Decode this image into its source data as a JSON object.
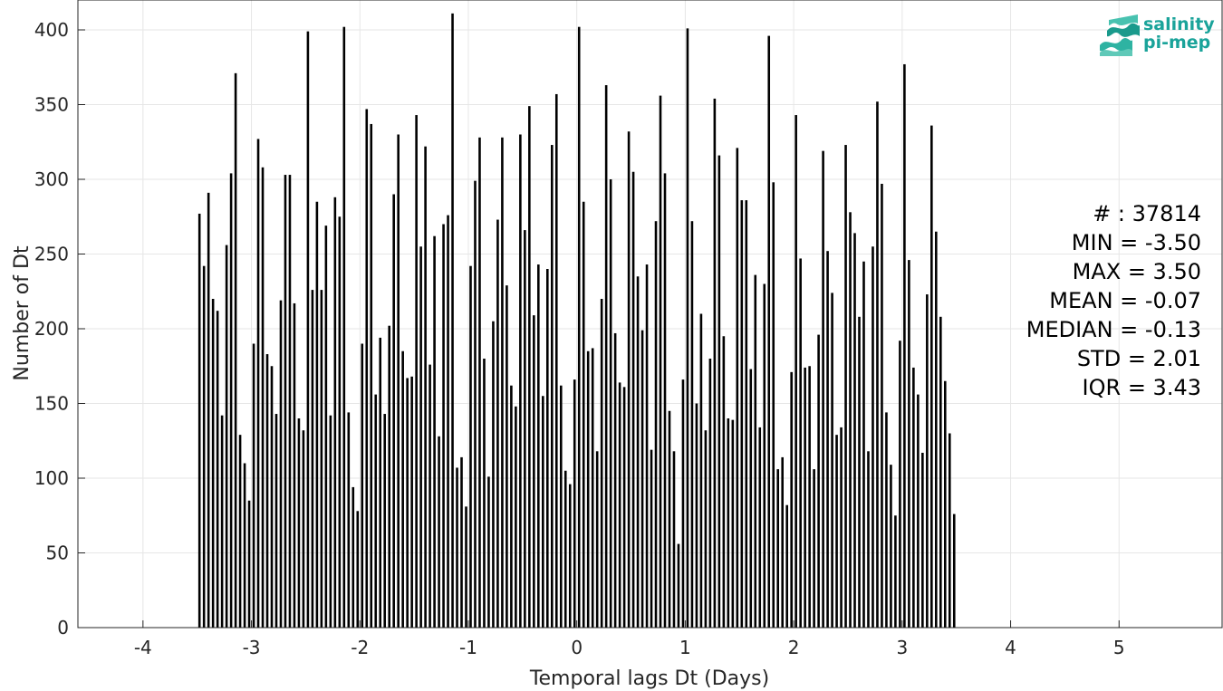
{
  "chart_data": {
    "type": "bar",
    "xlabel": "Temporal lags Dt (Days)",
    "ylabel": "Number of Dt",
    "xlim": [
      -4.6,
      5.95
    ],
    "ylim": [
      0,
      420
    ],
    "xticks": [
      -4,
      -3,
      -2,
      -1,
      0,
      1,
      2,
      3,
      4,
      5
    ],
    "xtick_labels": [
      "-4",
      "-3",
      "-2",
      "-1",
      "0",
      "1",
      "2",
      "3",
      "4",
      "5"
    ],
    "yticks": [
      0,
      50,
      100,
      150,
      200,
      250,
      300,
      350,
      400
    ],
    "ytick_labels": [
      "0",
      "50",
      "100",
      "150",
      "200",
      "250",
      "300",
      "350",
      "400"
    ],
    "grid": true,
    "bar_color": "#000000",
    "bin_width": 0.04167,
    "x_start": -3.5,
    "values": [
      277,
      242,
      291,
      220,
      212,
      142,
      256,
      304,
      371,
      129,
      110,
      85,
      190,
      327,
      308,
      183,
      175,
      143,
      219,
      303,
      303,
      217,
      140,
      132,
      399,
      226,
      285,
      226,
      269,
      142,
      288,
      275,
      402,
      144,
      94,
      78,
      190,
      347,
      337,
      156,
      194,
      143,
      202,
      290,
      330,
      185,
      167,
      168,
      343,
      255,
      322,
      176,
      262,
      128,
      270,
      276,
      411,
      107,
      114,
      81,
      242,
      299,
      328,
      180,
      101,
      205,
      273,
      328,
      229,
      162,
      148,
      330,
      266,
      349,
      209,
      243,
      155,
      240,
      323,
      357,
      162,
      105,
      96,
      166,
      402,
      285,
      185,
      187,
      118,
      220,
      363,
      300,
      197,
      164,
      161,
      332,
      305,
      235,
      199,
      243,
      119,
      272,
      356,
      304,
      145,
      118,
      56,
      166,
      401,
      272,
      150,
      210,
      132,
      180,
      354,
      316,
      195,
      140,
      139,
      321,
      286,
      286,
      173,
      236,
      134,
      230,
      396,
      298,
      106,
      114,
      82,
      171,
      343,
      247,
      174,
      175,
      106,
      196,
      319,
      252,
      224,
      129,
      134,
      323,
      278,
      264,
      208,
      245,
      118,
      255,
      352,
      297,
      144,
      109,
      75,
      192,
      377,
      246,
      174,
      156,
      117,
      223,
      336,
      265,
      208,
      165,
      130,
      76
    ],
    "stats": [
      "# : 37814",
      "MIN = -3.50",
      "MAX =  3.50",
      "MEAN = -0.07",
      "MEDIAN = -0.13",
      "STD = 2.01",
      "IQR = 3.43"
    ]
  },
  "logo": {
    "line1": "salinity",
    "line2": "pi-mep",
    "color": "#1aa39a"
  }
}
